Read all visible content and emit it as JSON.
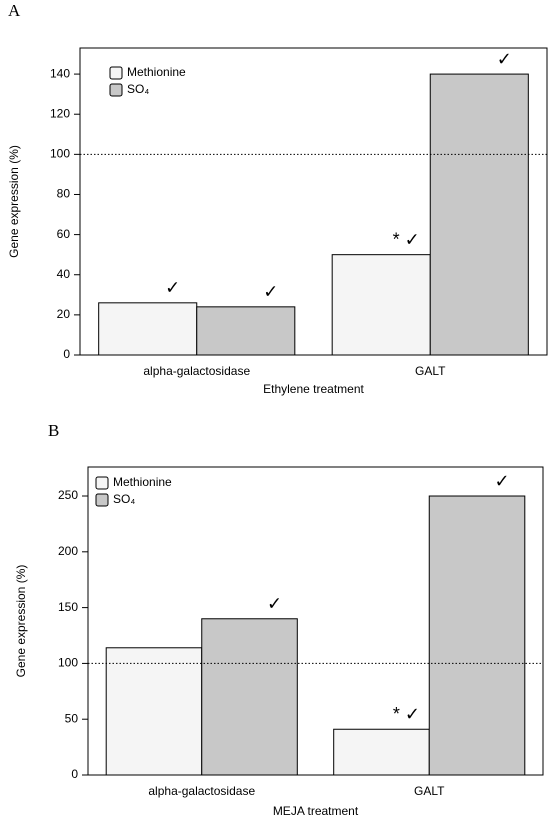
{
  "chart_data": [
    {
      "type": "bar",
      "label": "A",
      "xlabel": "Ethylene treatment",
      "ylabel": "Gene expression  (%)",
      "categories": [
        "alpha-galactosidase",
        "GALT"
      ],
      "series": [
        {
          "name": "Methionine",
          "color": "#f5f5f5",
          "values": [
            26,
            50
          ],
          "annotations": [
            "✓",
            "* ✓"
          ]
        },
        {
          "name": "SO₄",
          "color": "#c8c8c8",
          "values": [
            24,
            140
          ],
          "annotations": [
            "✓",
            "✓"
          ]
        }
      ],
      "ylim": [
        0,
        153
      ],
      "yticks": [
        0,
        20,
        40,
        60,
        80,
        100,
        120,
        140
      ],
      "reference_line": 100
    },
    {
      "type": "bar",
      "label": "B",
      "xlabel": "MEJA treatment",
      "ylabel": "Gene expression  (%)",
      "categories": [
        "alpha-galactosidase",
        "GALT"
      ],
      "series": [
        {
          "name": "Methionine",
          "color": "#f5f5f5",
          "values": [
            114,
            41
          ],
          "annotations": [
            null,
            "* ✓"
          ]
        },
        {
          "name": "SO₄",
          "color": "#c8c8c8",
          "values": [
            140,
            250
          ],
          "annotations": [
            "✓",
            "✓"
          ]
        }
      ],
      "ylim": [
        0,
        276
      ],
      "yticks": [
        0,
        50,
        100,
        150,
        200,
        250
      ],
      "reference_line": 100
    }
  ]
}
